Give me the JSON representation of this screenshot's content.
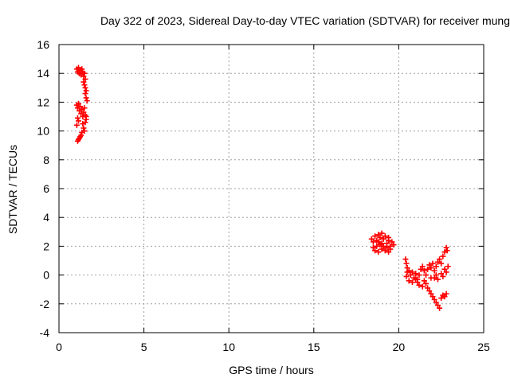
{
  "chart_data": {
    "type": "scatter",
    "title": "Day 322 of 2023, Sidereal Day-to-day VTEC variation (SDTVAR) for receiver mung",
    "xlabel": "GPS time / hours",
    "ylabel": "SDTVAR / TECUs",
    "xlim": [
      0,
      25
    ],
    "ylim": [
      -4,
      16
    ],
    "xticks": [
      0,
      5,
      10,
      15,
      20,
      25
    ],
    "yticks": [
      -4,
      -2,
      0,
      2,
      4,
      6,
      8,
      10,
      12,
      14,
      16
    ],
    "grid": true,
    "marker": "+",
    "color": "#ff0000",
    "series": [
      {
        "values": [
          [
            1.05,
            14.3
          ],
          [
            1.1,
            14.1
          ],
          [
            1.15,
            14.4
          ],
          [
            1.2,
            14.0
          ],
          [
            1.25,
            14.2
          ],
          [
            1.3,
            13.9
          ],
          [
            1.35,
            14.3
          ],
          [
            1.4,
            14.1
          ],
          [
            1.45,
            13.8
          ],
          [
            1.5,
            14.0
          ],
          [
            1.55,
            13.6
          ],
          [
            1.45,
            13.4
          ],
          [
            1.5,
            13.2
          ],
          [
            1.55,
            13.0
          ],
          [
            1.6,
            12.8
          ],
          [
            1.55,
            12.6
          ],
          [
            1.6,
            12.3
          ],
          [
            1.65,
            12.1
          ],
          [
            1.05,
            11.8
          ],
          [
            1.1,
            11.6
          ],
          [
            1.15,
            11.9
          ],
          [
            1.2,
            11.4
          ],
          [
            1.25,
            11.7
          ],
          [
            1.3,
            11.2
          ],
          [
            1.35,
            11.5
          ],
          [
            1.4,
            11.0
          ],
          [
            1.45,
            11.3
          ],
          [
            1.5,
            11.6
          ],
          [
            1.55,
            11.1
          ],
          [
            1.6,
            10.8
          ],
          [
            1.1,
            10.9
          ],
          [
            1.15,
            10.7
          ],
          [
            1.05,
            10.4
          ],
          [
            1.4,
            10.5
          ],
          [
            1.45,
            10.2
          ],
          [
            1.5,
            10.0
          ],
          [
            1.35,
            9.9
          ],
          [
            1.3,
            9.7
          ],
          [
            1.25,
            9.6
          ],
          [
            1.2,
            9.5
          ],
          [
            1.15,
            9.4
          ],
          [
            1.1,
            9.3
          ],
          [
            1.55,
            10.6
          ],
          [
            1.6,
            11.0
          ]
        ]
      },
      {
        "values": [
          [
            18.4,
            2.5
          ],
          [
            18.5,
            2.3
          ],
          [
            18.6,
            2.7
          ],
          [
            18.7,
            2.4
          ],
          [
            18.8,
            2.8
          ],
          [
            18.9,
            2.6
          ],
          [
            19.0,
            2.9
          ],
          [
            19.1,
            2.5
          ],
          [
            19.2,
            2.7
          ],
          [
            19.3,
            2.2
          ],
          [
            19.4,
            2.4
          ],
          [
            19.5,
            2.0
          ],
          [
            19.6,
            2.3
          ],
          [
            19.7,
            2.1
          ],
          [
            18.5,
            1.9
          ],
          [
            18.6,
            1.7
          ],
          [
            18.7,
            2.0
          ],
          [
            18.8,
            1.6
          ],
          [
            18.9,
            2.1
          ],
          [
            19.0,
            1.8
          ],
          [
            19.1,
            2.0
          ],
          [
            19.2,
            1.7
          ],
          [
            19.3,
            1.9
          ],
          [
            19.4,
            1.6
          ],
          [
            19.5,
            1.8
          ],
          [
            18.8,
            2.3
          ],
          [
            19.0,
            2.2
          ],
          [
            19.4,
            2.6
          ]
        ]
      },
      {
        "values": [
          [
            20.4,
            1.1
          ],
          [
            20.45,
            0.8
          ],
          [
            20.5,
            0.5
          ],
          [
            20.5,
            0.2
          ],
          [
            20.45,
            -0.1
          ],
          [
            20.6,
            0.3
          ],
          [
            20.7,
            0.0
          ],
          [
            20.8,
            0.2
          ],
          [
            20.9,
            -0.2
          ],
          [
            21.0,
            0.1
          ],
          [
            21.1,
            -0.3
          ],
          [
            21.2,
            0.0
          ],
          [
            21.3,
            0.4
          ],
          [
            21.4,
            0.6
          ],
          [
            21.5,
            0.3
          ],
          [
            21.6,
            0.0
          ],
          [
            21.7,
            0.4
          ],
          [
            21.8,
            0.7
          ],
          [
            21.9,
            0.5
          ],
          [
            22.0,
            0.8
          ],
          [
            22.1,
            0.3
          ],
          [
            22.2,
            0.6
          ],
          [
            22.3,
            0.9
          ],
          [
            22.4,
            1.1
          ],
          [
            22.5,
            0.8
          ],
          [
            22.6,
            1.3
          ],
          [
            22.7,
            1.6
          ],
          [
            22.8,
            1.9
          ],
          [
            22.85,
            1.7
          ],
          [
            21.1,
            -0.5
          ],
          [
            21.2,
            -0.7
          ],
          [
            21.4,
            -0.8
          ],
          [
            21.6,
            -0.6
          ],
          [
            21.7,
            -0.9
          ],
          [
            21.8,
            -1.1
          ],
          [
            21.9,
            -1.3
          ],
          [
            22.0,
            -1.5
          ],
          [
            22.1,
            -1.7
          ],
          [
            22.2,
            -1.9
          ],
          [
            22.3,
            -2.1
          ],
          [
            22.4,
            -2.3
          ],
          [
            22.5,
            -1.6
          ],
          [
            22.6,
            -1.4
          ],
          [
            22.7,
            -1.5
          ],
          [
            22.8,
            -1.3
          ],
          [
            22.1,
            -0.2
          ],
          [
            22.2,
            0.0
          ],
          [
            22.3,
            -0.3
          ],
          [
            22.5,
            0.1
          ],
          [
            22.6,
            -0.1
          ],
          [
            22.7,
            0.4
          ],
          [
            22.8,
            0.2
          ],
          [
            22.9,
            0.6
          ],
          [
            20.6,
            -0.4
          ],
          [
            20.8,
            -0.5
          ],
          [
            21.0,
            -0.3
          ],
          [
            21.5,
            -0.4
          ],
          [
            21.9,
            -0.2
          ]
        ]
      }
    ]
  }
}
